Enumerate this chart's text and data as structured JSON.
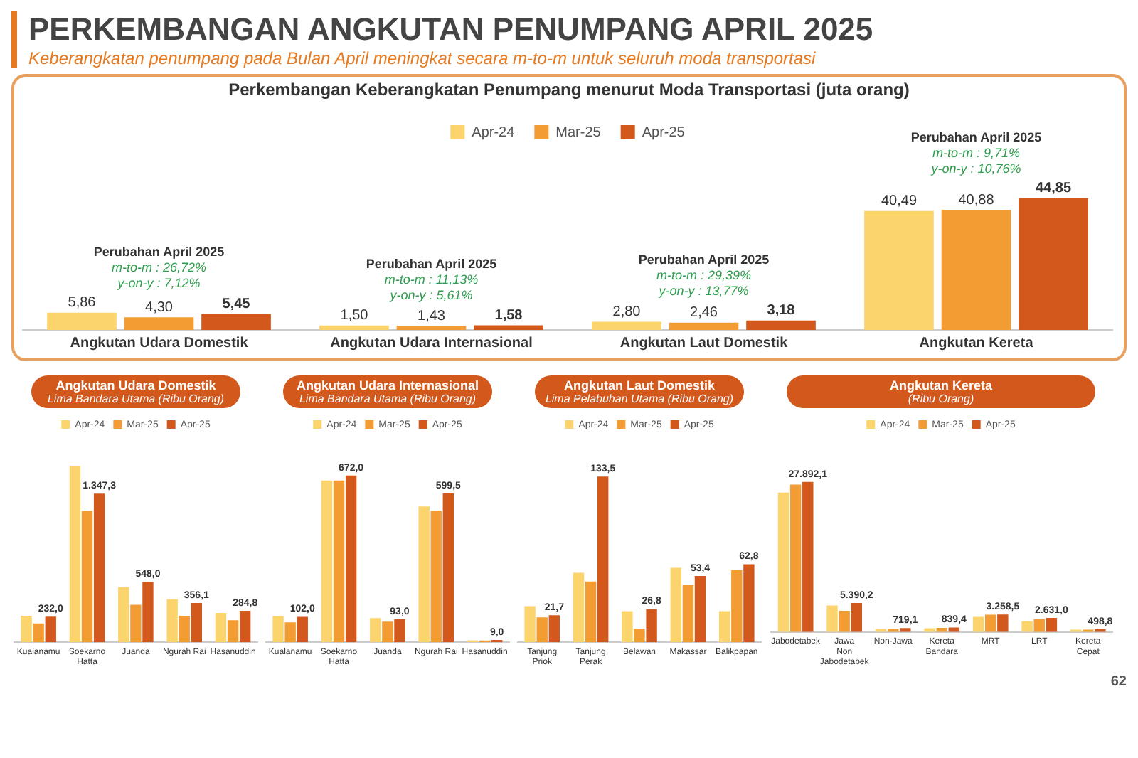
{
  "chart_data": [
    {
      "type": "bar",
      "title": "PERKEMBANGAN ANGKUTAN PENUMPANG APRIL 2025",
      "subtitle": "Keberangkatan penumpang pada Bulan April meningkat secara m-to-m untuk seluruh moda transportasi",
      "categories": [
        "Angkutan Udara Domestik",
        "Angkutan Udara Internasional",
        "Angkutan Laut Domestik",
        "Angkutan Kereta"
      ],
      "series": [
        {
          "name": "Apr-24",
          "color": "#fbd46d",
          "values": [
            5.86,
            1.5,
            2.8,
            40.49
          ],
          "value_labels": [
            "5,86",
            "1,50",
            "2,80",
            "40,49"
          ]
        },
        {
          "name": "Mar-25",
          "color": "#f39c34",
          "values": [
            4.3,
            1.43,
            2.46,
            40.88
          ],
          "value_labels": [
            "4,30",
            "1,43",
            "2,46",
            "40,88"
          ]
        },
        {
          "name": "Apr-25",
          "color": "#d2581c",
          "values": [
            5.45,
            1.58,
            3.18,
            44.85
          ],
          "value_labels": [
            "5,45",
            "1,58",
            "3,18",
            "44,85"
          ]
        }
      ],
      "legend": "top",
      "grid": false,
      "annotations": [
        "Perkembangan Keberangkatan Penumpang menurut Moda Transportasi (juta orang)",
        "Perubahan April 2025",
        "m-to-m : 26,72%",
        "y-on-y : 7,12%",
        "Perubahan April 2025",
        "m-to-m : 11,13%",
        "y-on-y : 5,61%",
        "Perubahan April 2025",
        "m-to-m : 29,39%",
        "y-on-y : 13,77%",
        "Perubahan April 2025",
        "m-to-m : 9,71%",
        "y-on-y : 10,76%"
      ]
    },
    {
      "type": "bar",
      "title": "Angkutan Udara Domestik",
      "subtitle": "Lima Bandara Utama (Ribu Orang)",
      "categories": [
        "Kualanamu",
        "Soekarno Hatta",
        "Juanda",
        "Ngurah Rai",
        "Hasanuddin"
      ],
      "series": [
        {
          "name": "Apr-24",
          "color": "#fbd46d",
          "values": [
            240,
            1600,
            500,
            390,
            265
          ]
        },
        {
          "name": "Mar-25",
          "color": "#f39c34",
          "values": [
            170,
            1190,
            340,
            240,
            200
          ]
        },
        {
          "name": "Apr-25",
          "color": "#d2581c",
          "values": [
            232.0,
            1347.3,
            548.0,
            356.1,
            284.8
          ],
          "value_labels": [
            "232,0",
            "1.347,3",
            "548,0",
            "356,1",
            "284,8"
          ]
        }
      ],
      "legend": "top",
      "grid": false
    },
    {
      "type": "bar",
      "title": "Angkutan Udara Internasional",
      "subtitle": "Lima Bandara Utama (Ribu Orang)",
      "categories": [
        "Kualanamu",
        "Soekarno Hatta",
        "Juanda",
        "Ngurah Rai",
        "Hasanuddin"
      ],
      "series": [
        {
          "name": "Apr-24",
          "color": "#fbd46d",
          "values": [
            105,
            652,
            97,
            547,
            8
          ]
        },
        {
          "name": "Mar-25",
          "color": "#f39c34",
          "values": [
            80,
            652,
            83,
            530,
            7
          ]
        },
        {
          "name": "Apr-25",
          "color": "#d2581c",
          "values": [
            102.0,
            672.0,
            93.0,
            599.5,
            9.0
          ],
          "value_labels": [
            "102,0",
            "672,0",
            "93,0",
            "599,5",
            "9,0"
          ]
        }
      ],
      "legend": "top",
      "grid": false
    },
    {
      "type": "bar",
      "title": "Angkutan Laut Domestik",
      "subtitle": "Lima Pelabuhan Utama (Ribu Orang)",
      "categories": [
        "Tanjung Priok",
        "Tanjung Perak",
        "Belawan",
        "Makassar",
        "Balikpapan"
      ],
      "series": [
        {
          "name": "Apr-24",
          "color": "#fbd46d",
          "values": [
            29,
            56,
            25,
            60,
            25
          ]
        },
        {
          "name": "Mar-25",
          "color": "#f39c34",
          "values": [
            20,
            49,
            11,
            46,
            58
          ]
        },
        {
          "name": "Apr-25",
          "color": "#d2581c",
          "values": [
            21.7,
            133.5,
            26.8,
            53.4,
            62.8
          ],
          "value_labels": [
            "21,7",
            "133,5",
            "26,8",
            "53,4",
            "62,8"
          ]
        }
      ],
      "legend": "top",
      "grid": false
    },
    {
      "type": "bar",
      "title": "Angkutan Kereta",
      "subtitle": "(Ribu Orang)",
      "categories": [
        "Jabodetabek",
        "Jawa Non Jabodetabek",
        "Non-Jawa",
        "Kereta Bandara",
        "MRT",
        "LRT",
        "Kereta Cepat"
      ],
      "series": [
        {
          "name": "Apr-24",
          "color": "#fbd46d",
          "values": [
            25900,
            4920,
            650,
            700,
            2800,
            2000,
            450
          ]
        },
        {
          "name": "Mar-25",
          "color": "#f39c34",
          "values": [
            27400,
            3925,
            600,
            780,
            3200,
            2400,
            430
          ]
        },
        {
          "name": "Apr-25",
          "color": "#d2581c",
          "values": [
            27892.1,
            5390.2,
            719.1,
            839.4,
            3258.5,
            2631.0,
            498.8
          ],
          "value_labels": [
            "27.892,1",
            "5.390,2",
            "719,1",
            "839,4",
            "3.258,5",
            "2.631,0",
            "498,8"
          ]
        }
      ],
      "legend": "top",
      "grid": false,
      "annotations": [
        "62"
      ]
    }
  ]
}
